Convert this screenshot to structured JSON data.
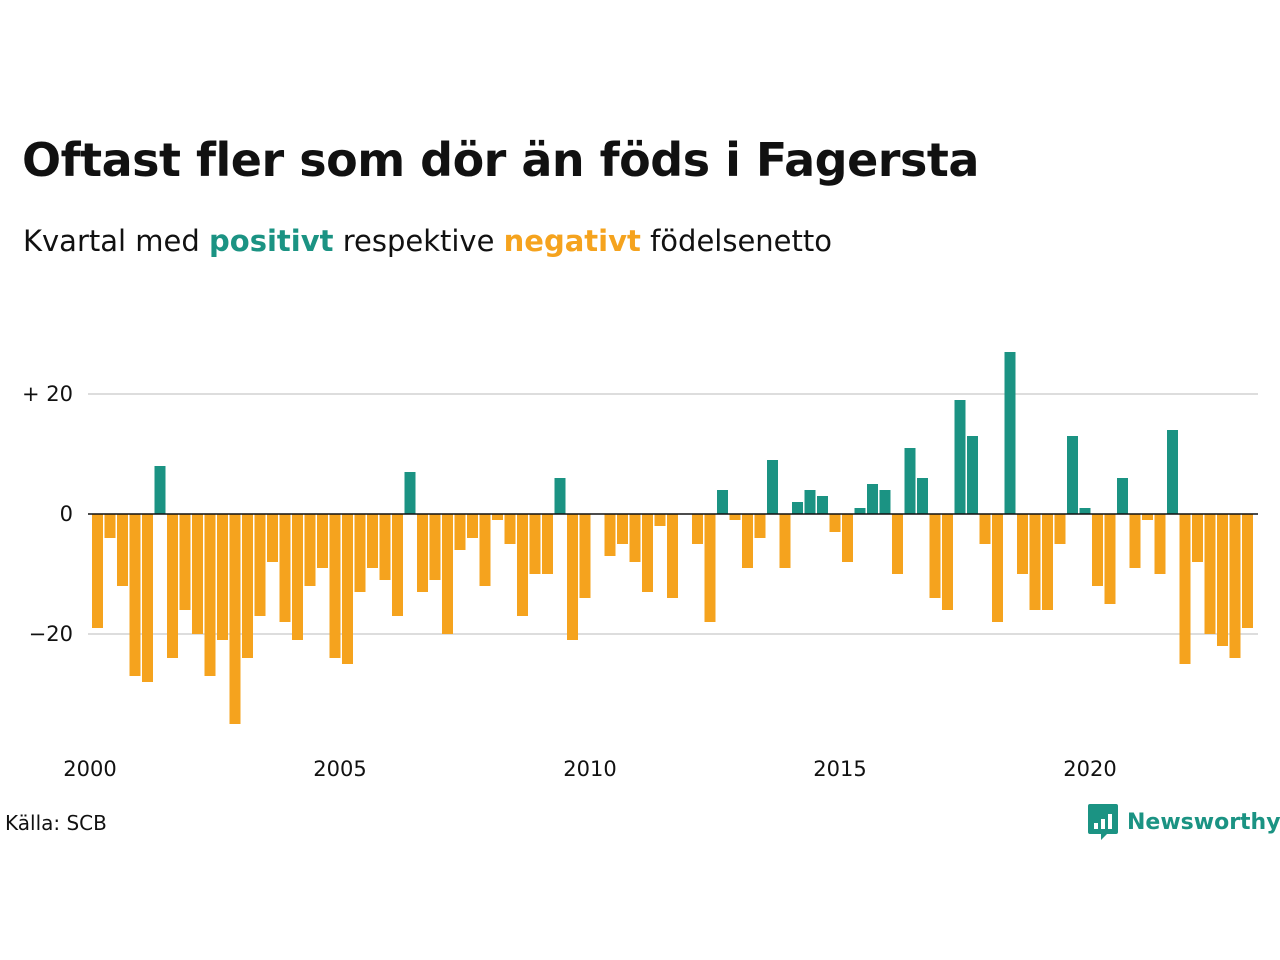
{
  "title": "Oftast fler som dör än föds i Fagersta",
  "subtitle": {
    "prefix": "Kvartal med ",
    "positive_word": "positivt",
    "middle": " respektive ",
    "negative_word": "negativt",
    "suffix": " födelsenetto"
  },
  "colors": {
    "positive": "#1b9383",
    "negative": "#f5a31e",
    "grid": "#dddddd",
    "brand": "#1b9383",
    "text": "#111111"
  },
  "source": "Källa: SCB",
  "brand": {
    "name": "Newsworthy",
    "icon": "bar-chart-speech-icon"
  },
  "chart_data": {
    "type": "bar",
    "x_start": "2000 Q1",
    "xticks": [
      "2000",
      "2005",
      "2010",
      "2015",
      "2020"
    ],
    "yticks": [
      {
        "value": 20,
        "label": "+ 20"
      },
      {
        "value": 0,
        "label": "0"
      },
      {
        "value": -20,
        "label": "−20"
      }
    ],
    "ylim": [
      -36,
      28
    ],
    "grid": true,
    "series": [
      {
        "values": [
          -19,
          -4,
          -12,
          -27,
          -28,
          8,
          -24,
          -16,
          -20,
          -27,
          -21,
          -35,
          -24,
          -17,
          -8,
          -18,
          -21,
          -12,
          -9,
          -24,
          -25,
          -13,
          -9,
          -11,
          -17,
          7,
          -13,
          -11,
          -20,
          -6,
          -4,
          -12,
          -1,
          -5,
          -17,
          -10,
          -10,
          6,
          -21,
          -14,
          0,
          -7,
          -5,
          -8,
          -13,
          -2,
          -14,
          0,
          -5,
          -18,
          4,
          -1,
          -9,
          -4,
          9,
          -9,
          2,
          4,
          3,
          -3,
          -8,
          1,
          5,
          4,
          -10,
          11,
          6,
          -14,
          -16,
          19,
          13,
          -5,
          -18,
          27,
          -10,
          -16,
          -16,
          -5,
          13,
          1,
          -12,
          -15,
          6,
          -9,
          -1,
          -10,
          14,
          -25,
          -8,
          -20,
          -22,
          -24,
          -19
        ]
      }
    ]
  }
}
